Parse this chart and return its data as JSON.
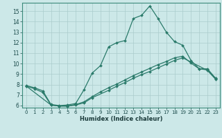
{
  "xlabel": "Humidex (Indice chaleur)",
  "bg_color": "#cce8e8",
  "grid_color": "#aacccc",
  "line_color": "#2a7a6a",
  "xlim": [
    -0.5,
    23.5
  ],
  "ylim": [
    5.8,
    15.8
  ],
  "xticks": [
    0,
    1,
    2,
    3,
    4,
    5,
    6,
    7,
    8,
    9,
    10,
    11,
    12,
    13,
    14,
    15,
    16,
    17,
    18,
    19,
    20,
    21,
    22,
    23
  ],
  "yticks": [
    6,
    7,
    8,
    9,
    10,
    11,
    12,
    13,
    14,
    15
  ],
  "line1_x": [
    0,
    1,
    2,
    3,
    4,
    5,
    6,
    7,
    8,
    9,
    10,
    11,
    12,
    13,
    14,
    15,
    16,
    17,
    18,
    19,
    20,
    21,
    22,
    23
  ],
  "line1_y": [
    7.9,
    7.7,
    7.4,
    6.1,
    6.0,
    6.05,
    6.2,
    7.5,
    9.1,
    9.8,
    11.6,
    12.0,
    12.2,
    14.3,
    14.6,
    15.5,
    14.3,
    13.0,
    12.1,
    11.75,
    10.3,
    9.5,
    9.5,
    8.6
  ],
  "line2_x": [
    0,
    1,
    2,
    3,
    4,
    5,
    6,
    7,
    8,
    9,
    10,
    11,
    12,
    13,
    14,
    15,
    16,
    17,
    18,
    19,
    20,
    21,
    22,
    23
  ],
  "line2_y": [
    7.85,
    7.6,
    7.25,
    6.05,
    5.95,
    5.95,
    6.1,
    6.35,
    6.85,
    7.3,
    7.7,
    8.05,
    8.45,
    8.85,
    9.2,
    9.55,
    9.9,
    10.2,
    10.55,
    10.7,
    10.05,
    9.5,
    9.4,
    8.55
  ],
  "line3_x": [
    0,
    3,
    4,
    5,
    6,
    7,
    8,
    10,
    11,
    12,
    13,
    14,
    15,
    16,
    17,
    18,
    19,
    22,
    23
  ],
  "line3_y": [
    7.85,
    6.05,
    5.95,
    5.95,
    6.05,
    6.25,
    6.75,
    7.45,
    7.85,
    8.2,
    8.6,
    8.95,
    9.25,
    9.6,
    9.95,
    10.3,
    10.55,
    9.35,
    8.5
  ]
}
